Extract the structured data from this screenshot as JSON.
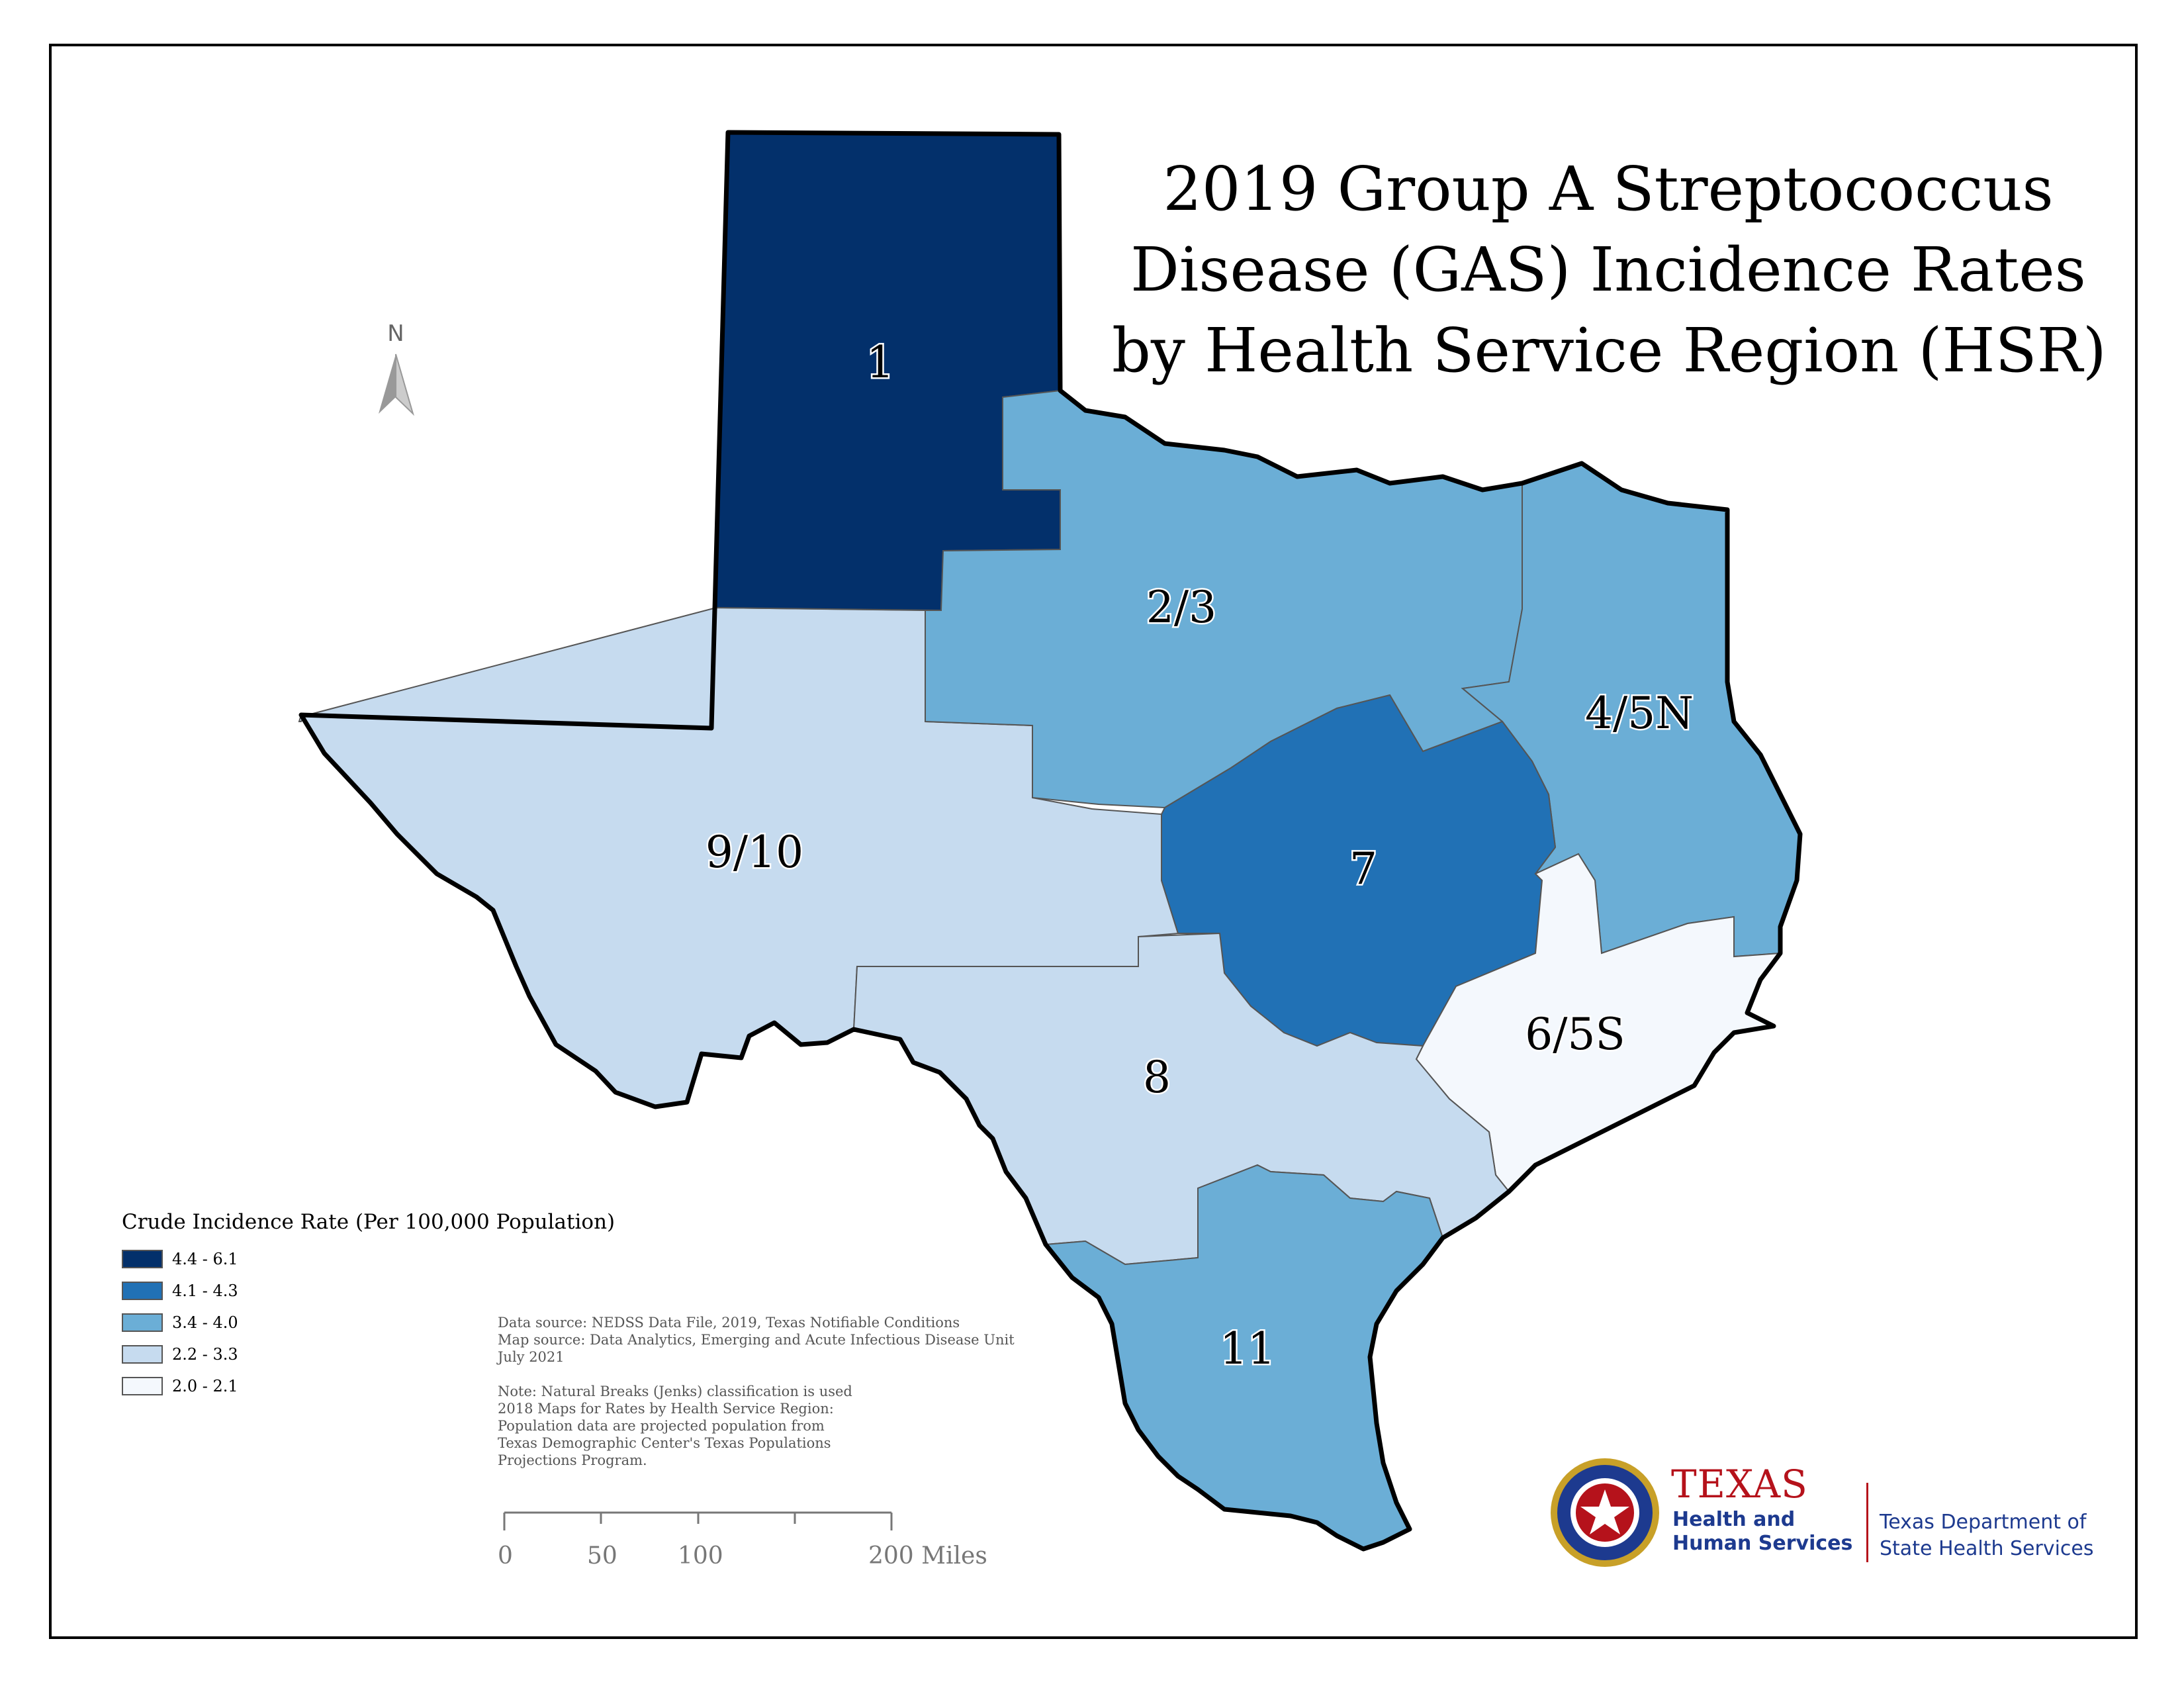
{
  "title": {
    "line1": "2019 Group A Streptococcus",
    "line2": "Disease (GAS) Incidence Rates",
    "line3": "by Health Service Region (HSR)"
  },
  "north_arrow": {
    "label": "N"
  },
  "regions": {
    "r1": {
      "label": "1",
      "fill": "#03306b"
    },
    "r23": {
      "label": "2/3",
      "fill": "#6baed6"
    },
    "r45n": {
      "label": "4/5N",
      "fill": "#6baed6"
    },
    "r7": {
      "label": "7",
      "fill": "#2171b5"
    },
    "r910": {
      "label": "9/10",
      "fill": "#c6dbef"
    },
    "r8": {
      "label": "8",
      "fill": "#c6dbef"
    },
    "r65s": {
      "label": "6/5S",
      "fill": "#f4f8fd"
    },
    "r11": {
      "label": "11",
      "fill": "#6baed6"
    }
  },
  "legend": {
    "title": "Crude Incidence Rate (Per 100,000 Population)",
    "items": [
      {
        "label": "4.4 - 6.1",
        "color": "#03306b"
      },
      {
        "label": "4.1 - 4.3",
        "color": "#2171b5"
      },
      {
        "label": "3.4 - 4.0",
        "color": "#6baed6"
      },
      {
        "label": "2.2 - 3.3",
        "color": "#c6dbef"
      },
      {
        "label": "2.0 - 2.1",
        "color": "#f4f8fd"
      }
    ]
  },
  "notes": {
    "source1": "Data source: NEDSS Data File, 2019, Texas Notifiable Conditions",
    "source2": "Map source: Data Analytics, Emerging and Acute Infectious Disease Unit",
    "date": "July 2021",
    "note1": "Note:  Natural Breaks (Jenks) classification is used",
    "note2": "2018 Maps for Rates by Health Service Region:",
    "note3": "Population data are projected population from",
    "note4": "Texas Demographic Center's Texas Populations",
    "note5": "Projections Program."
  },
  "scale_bar": {
    "t0": "0",
    "t50": "50",
    "t100": "100",
    "t200": "200 Miles"
  },
  "logo": {
    "hhs_name": "TEXAS",
    "hhs_sub": "Health and Human Services",
    "dshs": "Texas Department of State Health Services"
  }
}
